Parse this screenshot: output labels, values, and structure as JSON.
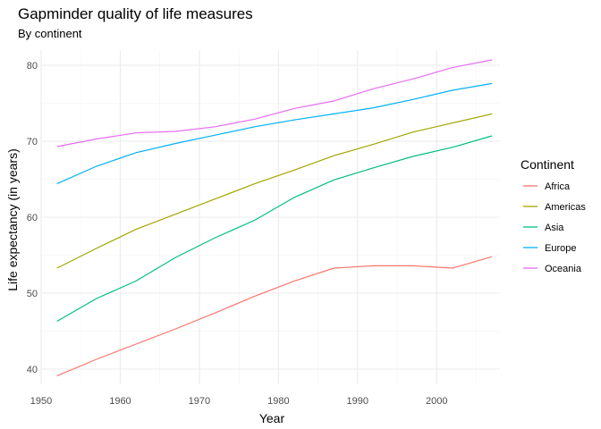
{
  "chart_data": {
    "type": "line",
    "title": "Gapminder quality of life measures",
    "subtitle": "By continent",
    "xlabel": "Year",
    "ylabel": "Life expectancy (in years)",
    "legend_title": "Continent",
    "legend_position": "right",
    "grid": true,
    "xlim": [
      1950,
      2008
    ],
    "ylim": [
      38,
      82
    ],
    "x_ticks": [
      1950,
      1960,
      1970,
      1980,
      1990,
      2000
    ],
    "y_ticks": [
      40,
      50,
      60,
      70,
      80
    ],
    "x": [
      1952,
      1957,
      1962,
      1967,
      1972,
      1977,
      1982,
      1987,
      1992,
      1997,
      2002,
      2007
    ],
    "series": [
      {
        "name": "Africa",
        "color": "#F8766D",
        "values": [
          39.1,
          41.3,
          43.3,
          45.3,
          47.4,
          49.6,
          51.6,
          53.3,
          53.6,
          53.6,
          53.3,
          54.8
        ]
      },
      {
        "name": "Americas",
        "color": "#A3A500",
        "values": [
          53.3,
          55.9,
          58.4,
          60.4,
          62.4,
          64.4,
          66.2,
          68.1,
          69.6,
          71.2,
          72.4,
          73.6
        ]
      },
      {
        "name": "Asia",
        "color": "#00BF7D",
        "values": [
          46.3,
          49.3,
          51.6,
          54.7,
          57.3,
          59.6,
          62.6,
          64.9,
          66.5,
          68.0,
          69.2,
          70.7
        ]
      },
      {
        "name": "Europe",
        "color": "#00B0F6",
        "values": [
          64.4,
          66.7,
          68.5,
          69.7,
          70.8,
          71.9,
          72.8,
          73.6,
          74.4,
          75.5,
          76.7,
          77.6
        ]
      },
      {
        "name": "Oceania",
        "color": "#E76BF3",
        "values": [
          69.3,
          70.3,
          71.1,
          71.3,
          71.9,
          72.9,
          74.3,
          75.3,
          76.9,
          78.2,
          79.7,
          80.7
        ]
      }
    ]
  }
}
